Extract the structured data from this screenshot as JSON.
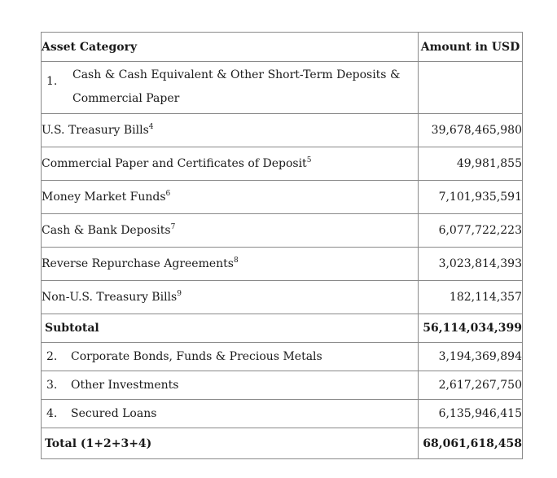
{
  "table": {
    "headers": {
      "category": "Asset Category",
      "amount": "Amount in USD"
    },
    "category1": {
      "number": "1.",
      "label": "Cash & Cash Equivalent & Other Short-Term Deposits & Commercial Paper",
      "items": [
        {
          "label": "U.S. Treasury Bills",
          "note": "4",
          "amount": "39,678,465,980"
        },
        {
          "label": "Commercial Paper and Certificates of Deposit",
          "note": "5",
          "amount": "49,981,855"
        },
        {
          "label": "Money Market Funds",
          "note": "6",
          "amount": "7,101,935,591"
        },
        {
          "label": "Cash & Bank Deposits",
          "note": "7",
          "amount": "6,077,722,223"
        },
        {
          "label": "Reverse Repurchase Agreements",
          "note": "8",
          "amount": "3,023,814,393"
        },
        {
          "label": "Non-U.S. Treasury Bills",
          "note": "9",
          "amount": "182,114,357"
        }
      ]
    },
    "subtotal": {
      "label": "Subtotal",
      "amount": "56,114,034,399"
    },
    "categories": [
      {
        "number": "2.",
        "label": "Corporate Bonds, Funds & Precious Metals",
        "amount": "3,194,369,894"
      },
      {
        "number": "3.",
        "label": "Other Investments",
        "amount": "2,617,267,750"
      },
      {
        "number": "4.",
        "label": "Secured Loans",
        "amount": "6,135,946,415"
      }
    ],
    "total": {
      "label": "Total (1+2+3+4)",
      "amount": "68,061,618,458"
    }
  }
}
